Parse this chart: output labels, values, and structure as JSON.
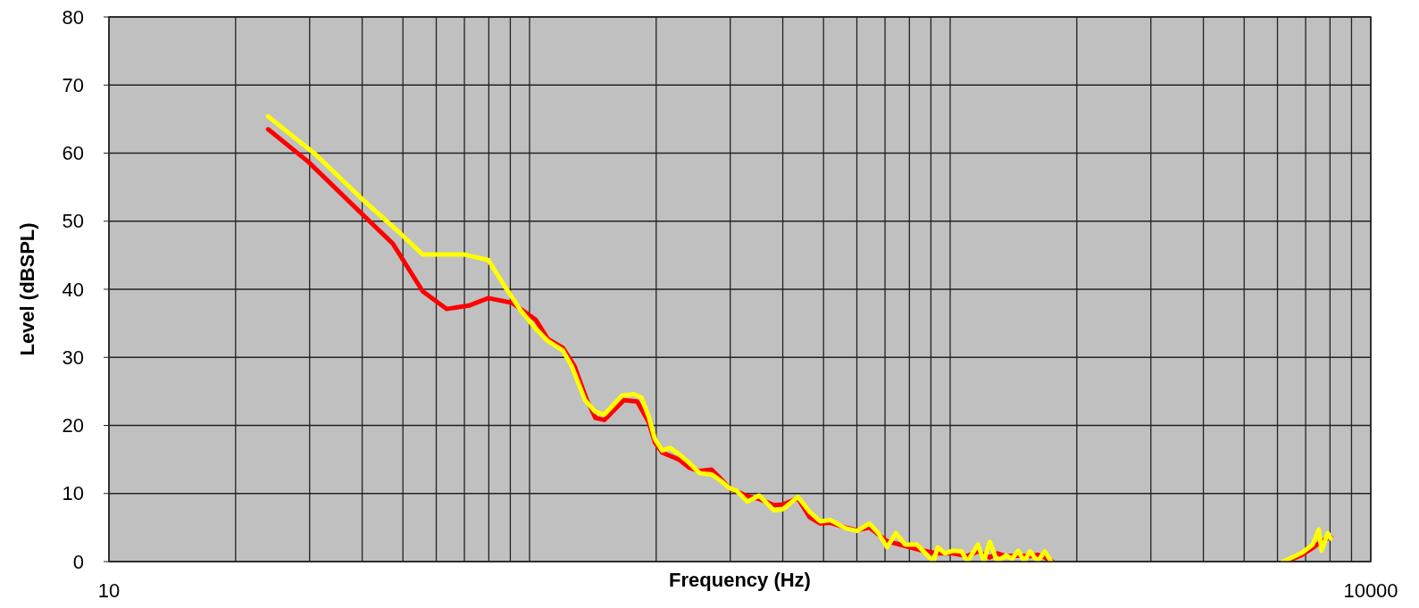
{
  "chart_data": {
    "type": "line",
    "xlabel": "Frequency (Hz)",
    "ylabel": "Level (dBSPL)",
    "log": "x",
    "grid": true,
    "line_style": "solid",
    "marker": "none",
    "xlim": [
      10,
      10000
    ],
    "ylim": [
      0,
      80
    ],
    "xticks": [
      {
        "value": 10,
        "label": "10"
      },
      {
        "value": 20,
        "label": null
      },
      {
        "value": 30,
        "label": null
      },
      {
        "value": 40,
        "label": null
      },
      {
        "value": 50,
        "label": null
      },
      {
        "value": 60,
        "label": null
      },
      {
        "value": 70,
        "label": null
      },
      {
        "value": 80,
        "label": null
      },
      {
        "value": 90,
        "label": null
      },
      {
        "value": 100,
        "label": null
      },
      {
        "value": 200,
        "label": null
      },
      {
        "value": 300,
        "label": null
      },
      {
        "value": 400,
        "label": null
      },
      {
        "value": 500,
        "label": null
      },
      {
        "value": 600,
        "label": null
      },
      {
        "value": 700,
        "label": null
      },
      {
        "value": 800,
        "label": null
      },
      {
        "value": 900,
        "label": null
      },
      {
        "value": 1000,
        "label": null
      },
      {
        "value": 2000,
        "label": null
      },
      {
        "value": 3000,
        "label": null
      },
      {
        "value": 4000,
        "label": null
      },
      {
        "value": 5000,
        "label": null
      },
      {
        "value": 6000,
        "label": null
      },
      {
        "value": 7000,
        "label": null
      },
      {
        "value": 8000,
        "label": null
      },
      {
        "value": 9000,
        "label": null
      },
      {
        "value": 10000,
        "label": "10000"
      }
    ],
    "yticks": [
      0,
      10,
      20,
      30,
      40,
      50,
      60,
      70,
      80
    ],
    "series": [
      {
        "color": "#ff0000",
        "x": [
          23.9,
          29.8,
          39.6,
          47.3,
          55.7,
          63.5,
          71.7,
          79.8,
          90.9,
          103.5,
          110.5,
          120,
          127.9,
          136.5,
          143.4,
          150.6,
          167.5,
          180.3,
          192,
          198.6,
          206.8,
          226.4,
          239.7,
          253.6,
          270.8,
          284.4,
          298.5,
          329.4,
          351.6,
          381.2,
          400.5,
          434.5,
          463.6,
          490.9,
          519.6,
          563.6,
          601,
          642.3,
          708,
          781,
          861,
          934,
          1014,
          1099,
          1164,
          1242,
          1294,
          1358,
          1452,
          1549,
          1614,
          1679,
          1750,
          3000,
          6300,
          6870,
          7278,
          7644,
          8030
        ],
        "values": [
          63.5,
          58.7,
          51.3,
          46.7,
          39.7,
          37.1,
          37.6,
          38.7,
          38.0,
          35.5,
          32.7,
          31.4,
          28.7,
          23.9,
          21.1,
          20.8,
          23.7,
          23.5,
          20.5,
          17.5,
          16.0,
          15.0,
          13.8,
          13.3,
          13.5,
          12.2,
          10.8,
          9.6,
          9.2,
          8.3,
          8.4,
          9.3,
          6.5,
          5.6,
          5.7,
          5.0,
          4.6,
          5.0,
          3.0,
          2.3,
          1.6,
          1.2,
          1.2,
          0.8,
          1.5,
          0.6,
          1.2,
          0.8,
          0.9,
          0.8,
          1.0,
          0.6,
          0,
          null,
          0,
          1.0,
          2.0,
          3.0,
          3.6
        ]
      },
      {
        "color": "#ffff00",
        "x": [
          23.9,
          31,
          39.6,
          49.7,
          55.7,
          70,
          79.8,
          88,
          95.5,
          103.5,
          110.5,
          120,
          126,
          135.5,
          143.4,
          150.6,
          166,
          177,
          184.5,
          192,
          198.6,
          206.8,
          215.6,
          226.4,
          239.7,
          253.6,
          270.8,
          284.4,
          298.5,
          311,
          329.4,
          351.6,
          381.2,
          400.5,
          434.5,
          463.6,
          490.9,
          519.6,
          563.6,
          601,
          642.3,
          674.5,
          708,
          743,
          781,
          834,
          861,
          912,
          934,
          972,
          1014,
          1064,
          1099,
          1164,
          1203,
          1242,
          1294,
          1358,
          1403,
          1452,
          1499,
          1549,
          1614,
          1679,
          1738,
          3000,
          6181,
          6546,
          6870,
          7278,
          7520,
          7644,
          7900,
          8030
        ],
        "values": [
          65.4,
          59.8,
          53.5,
          48.0,
          45.1,
          45.1,
          44.3,
          40.1,
          36.8,
          34.2,
          32.4,
          31,
          28.7,
          23.7,
          22.0,
          21.6,
          24.4,
          24.6,
          24.1,
          21.3,
          18.0,
          16.3,
          16.7,
          15.8,
          14.5,
          13.0,
          12.8,
          11.9,
          10.8,
          10.4,
          8.8,
          9.7,
          7.5,
          7.7,
          9.5,
          7.3,
          5.9,
          6.1,
          4.9,
          4.5,
          5.6,
          4.2,
          2.1,
          4.2,
          2.5,
          2.5,
          1.6,
          0,
          2.1,
          1.2,
          1.6,
          1.5,
          0,
          2.5,
          0,
          2.9,
          0,
          0.9,
          0.4,
          1.6,
          0,
          1.5,
          0,
          1.5,
          0,
          null,
          0,
          0.7,
          1.3,
          2.5,
          4.7,
          1.6,
          4.2,
          3.4
        ]
      }
    ]
  }
}
